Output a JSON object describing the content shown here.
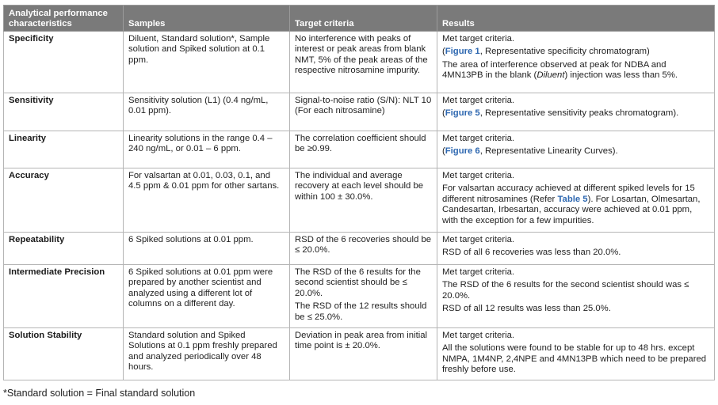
{
  "header_partial": "Analytical performance characteristics",
  "columns": [
    "Analytical performance characteristics",
    "Samples",
    "Target criteria",
    "Results"
  ],
  "rows": [
    {
      "char": "Specificity",
      "samples": "Diluent, Standard solution*, Sample solution and Spiked solution at 0.1 ppm.",
      "criteria": "No interference with peaks of interest or peak areas from blank NMT, 5% of the peak areas of the respective nitrosamine impurity.",
      "r1": "Met target criteria.",
      "r2_open": "(",
      "r2_fig": "Figure 1",
      "r2_rest": ", Representative specificity chromatogram)",
      "r3_pre": "The area of interference observed at peak for NDBA and 4MN13PB in the blank (",
      "r3_it": "Diluent",
      "r3_post": ") injection was less than 5%."
    },
    {
      "char": "Sensitivity",
      "samples": "Sensitivity solution (L1) (0.4 ng/mL, 0.01 ppm).",
      "criteria": "Signal-to-noise ratio (S/N): NLT 10  (For each nitrosamine)",
      "r1": "Met target criteria.",
      "r2_open": "(",
      "r2_fig": "Figure 5",
      "r2_rest": ", Representative sensitivity peaks chromatogram)."
    },
    {
      "char": "Linearity",
      "samples": "Linearity solutions in the range 0.4 – 240 ng/mL, or 0.01 – 6 ppm.",
      "criteria": "The correlation coefficient should be ≥0.99.",
      "r1": "Met target criteria.",
      "r2_open": "(",
      "r2_fig": "Figure 6",
      "r2_rest": ", Representative Linearity Curves)."
    },
    {
      "char": "Accuracy",
      "samples": "For valsartan at 0.01, 0.03, 0.1, and 4.5 ppm & 0.01 ppm for other sartans.",
      "criteria": "The individual and average recovery at each level should be within 100 ± 30.0%.",
      "r1": "Met target criteria.",
      "r2_pre": "For valsartan accuracy achieved at different spiked levels for 15 different nitrosamines (Refer ",
      "r2_fig": "Table 5",
      "r2_post": "). For Losartan, Olmesartan, Candesartan, Irbesartan, accuracy were achieved at 0.01 ppm, with the exception for a few impurities."
    },
    {
      "char": "Repeatability",
      "samples": "6 Spiked solutions at 0.01 ppm.",
      "criteria": "RSD of the 6 recoveries should be ≤ 20.0%.",
      "r1": "Met target criteria.",
      "r2": "RSD of all 6 recoveries was less than 20.0%."
    },
    {
      "char": "Intermediate Precision",
      "samples": "6 Spiked solutions at 0.01 ppm were prepared by another scientist and analyzed using a different lot of columns on a different day.",
      "criteria_a": "The RSD of the 6 results for the second scientist should be ≤ 20.0%.",
      "criteria_b": "The RSD of the 12 results should be ≤ 25.0%.",
      "r1": "Met target criteria.",
      "r2": "The RSD of the 6 results for the second scientist should was ≤ 20.0%.",
      "r3": "RSD of all 12 results was less than 25.0%."
    },
    {
      "char": "Solution Stability",
      "samples": "Standard solution and Spiked Solutions at 0.1 ppm freshly prepared and analyzed periodically over 48 hours.",
      "criteria": "Deviation in peak area from initial time point is ± 20.0%.",
      "r1": "Met target criteria.",
      "r2": "All the solutions were found to be stable for up to 48 hrs. except NMPA, 1M4NP, 2,4NPE and 4MN13PB which need to be prepared freshly before use."
    }
  ],
  "footnote": "*Standard solution = Final standard solution"
}
